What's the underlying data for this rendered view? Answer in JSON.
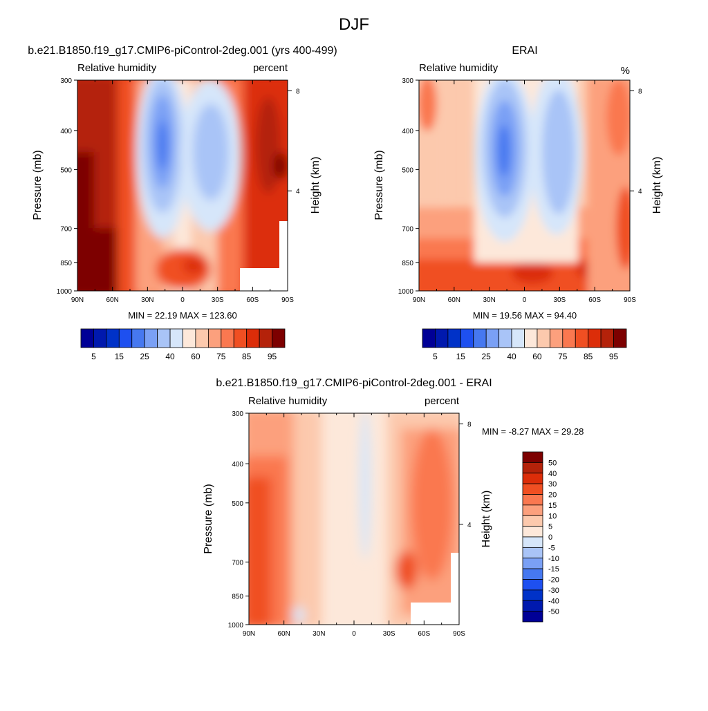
{
  "figure": {
    "title": "DJF"
  },
  "colors": {
    "rh_levels": [
      "#000096",
      "#0019ae",
      "#0032c8",
      "#1e50f0",
      "#4678f0",
      "#7aa0f5",
      "#a9c4f7",
      "#d6e6fa",
      "#fde8da",
      "#fcc9ad",
      "#fca07d",
      "#fa7850",
      "#f04f22",
      "#dc2d09",
      "#b4220a",
      "#7d0000"
    ],
    "diff_levels": [
      "#000096",
      "#0019ae",
      "#0032c8",
      "#1e50f0",
      "#4678f0",
      "#7aa0f5",
      "#a9c4f7",
      "#d6e6fa",
      "#fde8da",
      "#fcc9ad",
      "#fca07d",
      "#fa7850",
      "#f04f22",
      "#dc2d09",
      "#b4220a",
      "#7d0000"
    ]
  },
  "chart_data": [
    {
      "type": "heatmap",
      "id": "panel1",
      "title": "b.e21.B1850.f19_g17.CMIP6-piControl-2deg.001 (yrs 400-499)",
      "left_label": "Relative humidity",
      "right_label": "percent",
      "ylabel": "Pressure (mb)",
      "ylabel_right": "Height (km)",
      "x_ticks": [
        "90N",
        "60N",
        "30N",
        "0",
        "30S",
        "60S",
        "90S"
      ],
      "y_ticks": [
        "300",
        "400",
        "500",
        "700",
        "850",
        "1000"
      ],
      "y_ticks_right": [
        "8",
        "4"
      ],
      "min_max": "MIN =  22.19  MAX = 123.60",
      "colorbar_labels": [
        "5",
        "15",
        "25",
        "40",
        "60",
        "75",
        "85",
        "95"
      ],
      "xlim": [
        90,
        -90
      ],
      "ylim": [
        1000,
        300
      ]
    },
    {
      "type": "heatmap",
      "id": "panel2",
      "title": "ERAI",
      "left_label": "Relative humidity",
      "right_label": "%",
      "ylabel": "Pressure (mb)",
      "ylabel_right": "Height (km)",
      "x_ticks": [
        "90N",
        "60N",
        "30N",
        "0",
        "30S",
        "60S",
        "90S"
      ],
      "y_ticks": [
        "300",
        "400",
        "500",
        "700",
        "850",
        "1000"
      ],
      "y_ticks_right": [
        "8",
        "4"
      ],
      "min_max": "MIN =  19.56  MAX =  94.40",
      "colorbar_labels": [
        "5",
        "15",
        "25",
        "40",
        "60",
        "75",
        "85",
        "95"
      ],
      "xlim": [
        90,
        -90
      ],
      "ylim": [
        1000,
        300
      ]
    },
    {
      "type": "heatmap",
      "id": "panel3",
      "title": "b.e21.B1850.f19_g17.CMIP6-piControl-2deg.001 - ERAI",
      "left_label": "Relative humidity",
      "right_label": "percent",
      "ylabel": "Pressure (mb)",
      "ylabel_right": "Height (km)",
      "x_ticks": [
        "90N",
        "60N",
        "30N",
        "0",
        "30S",
        "60S",
        "90S"
      ],
      "y_ticks": [
        "300",
        "400",
        "500",
        "700",
        "850",
        "1000"
      ],
      "y_ticks_right": [
        "8",
        "4"
      ],
      "min_max": "MIN =  -8.27  MAX =  29.28",
      "colorbar_labels": [
        "50",
        "40",
        "30",
        "20",
        "15",
        "10",
        "5",
        "0",
        "-5",
        "-10",
        "-15",
        "-20",
        "-30",
        "-40",
        "-50"
      ],
      "xlim": [
        90,
        -90
      ],
      "ylim": [
        1000,
        300
      ]
    }
  ]
}
